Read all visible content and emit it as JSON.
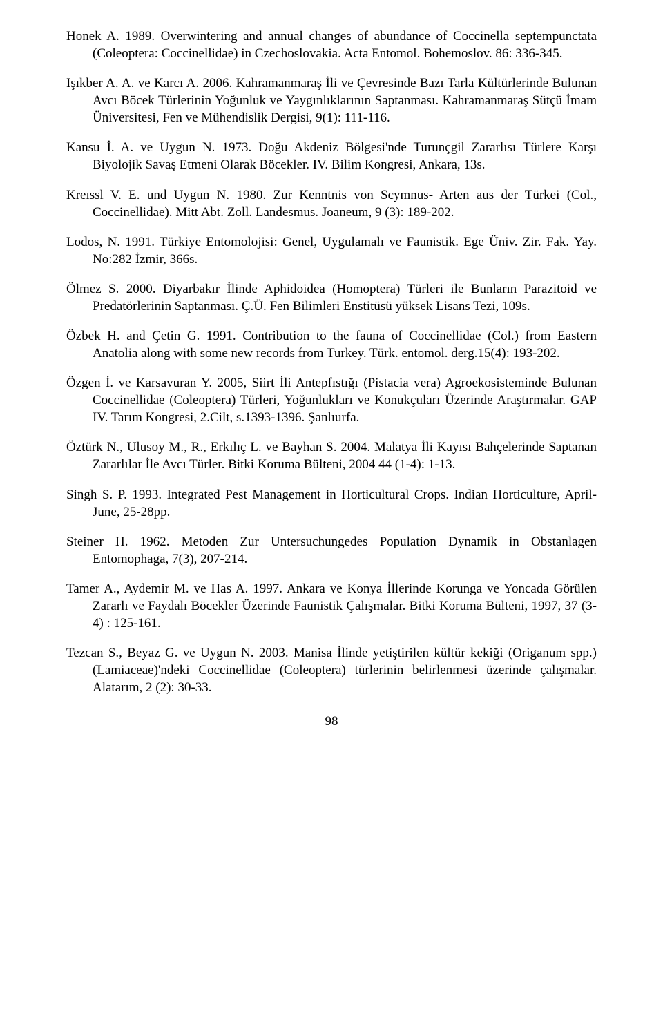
{
  "references": [
    "Honek A. 1989. Overwintering and annual changes of abundance of Coccinella septempunctata (Coleoptera: Coccinellidae) in Czechoslovakia. Acta Entomol. Bohemoslov. 86: 336-345.",
    "Işıkber A. A. ve Karcı A. 2006. Kahramanmaraş İli ve Çevresinde Bazı Tarla Kültürlerinde Bulunan Avcı Böcek Türlerinin Yoğunluk ve Yaygınlıklarının Saptanması. Kahramanmaraş Sütçü İmam Üniversitesi, Fen ve Mühendislik Dergisi, 9(1): 111-116.",
    "Kansu İ. A. ve Uygun N. 1973. Doğu Akdeniz Bölgesi'nde Turunçgil Zararlısı Türlere Karşı Biyolojik Savaş Etmeni Olarak Böcekler. IV. Bilim Kongresi, Ankara, 13s.",
    "Kreıssl V. E. und Uygun N. 1980. Zur Kenntnis von Scymnus- Arten aus der Türkei (Col., Coccinellidae). Mitt Abt. Zoll. Landesmus. Joaneum, 9 (3): 189-202.",
    "Lodos, N. 1991. Türkiye Entomolojisi: Genel, Uygulamalı ve Faunistik. Ege Üniv. Zir. Fak. Yay. No:282 İzmir, 366s.",
    "Ölmez S. 2000. Diyarbakır İlinde Aphidoidea (Homoptera) Türleri ile Bunların Parazitoid ve Predatörlerinin Saptanması. Ç.Ü. Fen Bilimleri Enstitüsü yüksek Lisans Tezi, 109s.",
    "Özbek H. and Çetin G. 1991. Contribution to the fauna of Coccinellidae (Col.) from Eastern Anatolia along with some new records from Turkey. Türk. entomol. derg.15(4): 193-202.",
    "Özgen İ. ve Karsavuran Y. 2005, Siirt İli Antepfıstığı (Pistacia vera) Agroekosisteminde Bulunan Coccinellidae (Coleoptera) Türleri, Yoğunlukları ve Konukçuları Üzerinde Araştırmalar. GAP IV. Tarım Kongresi, 2.Cilt, s.1393-1396. Şanlıurfa.",
    "Öztürk N., Ulusoy M., R., Erkılıç L. ve Bayhan S. 2004. Malatya İli Kayısı Bahçelerinde Saptanan Zararlılar İle Avcı Türler. Bitki Koruma Bülteni, 2004 44 (1-4): 1-13.",
    "Singh S. P. 1993. Integrated Pest Management in Horticultural Crops. Indian Horticulture, April-June, 25-28pp.",
    "Steiner H. 1962. Metoden Zur Untersuchungedes Population Dynamik in Obstanlagen Entomophaga, 7(3), 207-214.",
    "Tamer A., Aydemir M. ve Has A. 1997. Ankara ve Konya İllerinde Korunga ve Yoncada Görülen Zararlı ve Faydalı Böcekler Üzerinde Faunistik Çalışmalar. Bitki Koruma Bülteni, 1997, 37 (3-4) : 125-161.",
    "Tezcan S., Beyaz G. ve Uygun N. 2003. Manisa İlinde yetiştirilen kültür kekiği (Origanum spp.) (Lamiaceae)'ndeki Coccinellidae (Coleoptera) türlerinin belirlenmesi üzerinde çalışmalar. Alatarım, 2 (2): 30-33."
  ],
  "pageNumber": "98"
}
